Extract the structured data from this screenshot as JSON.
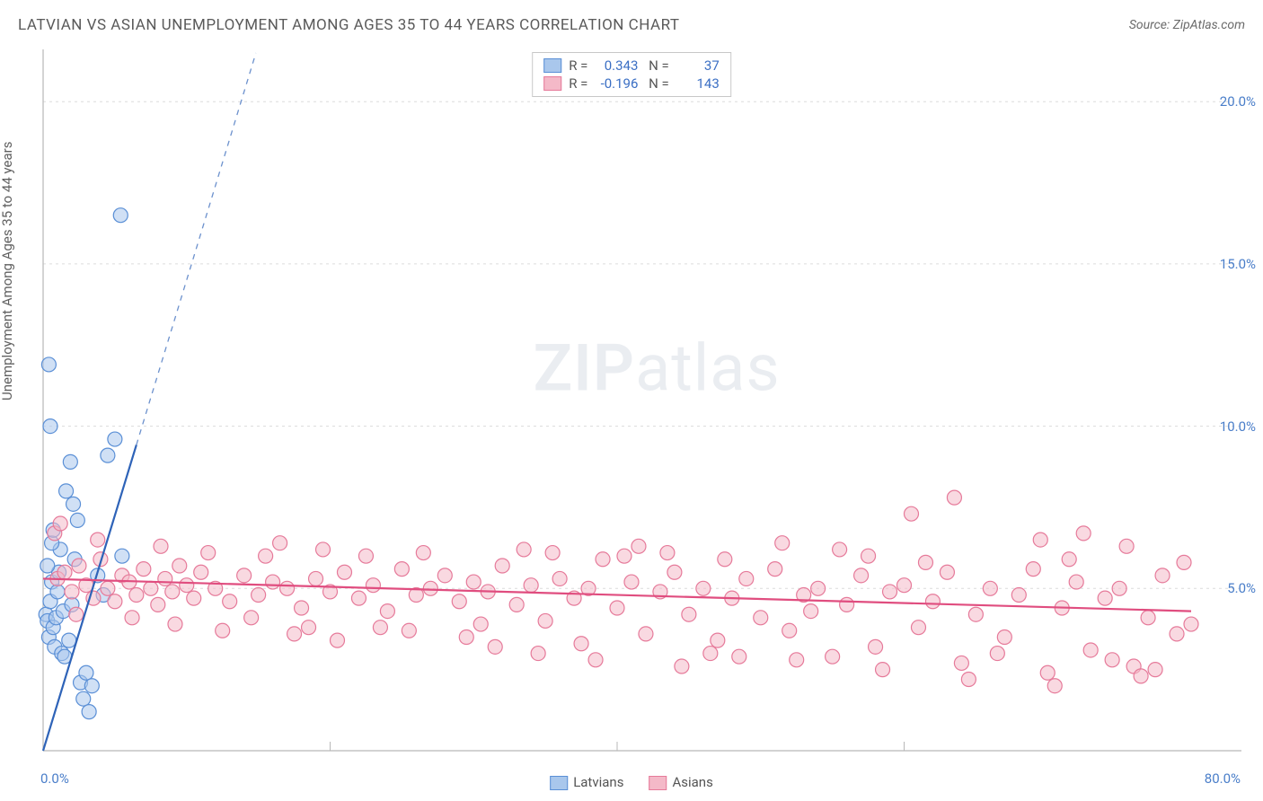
{
  "title": "LATVIAN VS ASIAN UNEMPLOYMENT AMONG AGES 35 TO 44 YEARS CORRELATION CHART",
  "source_label": "Source: ZipAtlas.com",
  "ylabel": "Unemployment Among Ages 35 to 44 years",
  "watermark": {
    "bold": "ZIP",
    "rest": "atlas"
  },
  "chart": {
    "type": "scatter",
    "background_color": "#ffffff",
    "grid_color": "#dcdcdc",
    "axis_color": "#b8b8b8",
    "x_axis": {
      "min": 0,
      "max": 80,
      "unit": "%",
      "ticks": [
        0,
        20,
        40,
        60,
        80
      ],
      "label_left": "0.0%",
      "label_right": "80.0%",
      "label_color": "#4a7ec9"
    },
    "y_axis": {
      "min": 0,
      "max": 21.5,
      "unit": "%",
      "ticks": [
        5,
        10,
        15,
        20
      ],
      "tick_labels": [
        "5.0%",
        "10.0%",
        "15.0%",
        "20.0%"
      ],
      "label_color": "#4a7ec9"
    },
    "marker_radius": 8,
    "marker_opacity": 0.55,
    "series": [
      {
        "name": "Latvians",
        "color_fill": "#a9c7ec",
        "color_stroke": "#5a8fd6",
        "trend": {
          "solid_to_x": 6.5,
          "slope": 1.45,
          "intercept": 0.0,
          "color": "#2e63b8",
          "width": 2.2
        },
        "stats": {
          "R": "0.343",
          "N": "37"
        },
        "points": [
          [
            0.2,
            4.2
          ],
          [
            0.3,
            4.0
          ],
          [
            0.4,
            3.5
          ],
          [
            0.5,
            4.6
          ],
          [
            0.6,
            5.2
          ],
          [
            0.7,
            3.8
          ],
          [
            0.8,
            3.2
          ],
          [
            0.9,
            4.1
          ],
          [
            1.0,
            4.9
          ],
          [
            1.1,
            5.5
          ],
          [
            1.2,
            6.2
          ],
          [
            1.3,
            3.0
          ],
          [
            1.4,
            4.3
          ],
          [
            1.5,
            2.9
          ],
          [
            1.8,
            3.4
          ],
          [
            2.0,
            4.5
          ],
          [
            2.2,
            5.9
          ],
          [
            2.4,
            7.1
          ],
          [
            2.6,
            2.1
          ],
          [
            2.8,
            1.6
          ],
          [
            3.0,
            2.4
          ],
          [
            3.2,
            1.2
          ],
          [
            3.4,
            2.0
          ],
          [
            1.6,
            8.0
          ],
          [
            1.9,
            8.9
          ],
          [
            2.1,
            7.6
          ],
          [
            0.5,
            10.0
          ],
          [
            0.4,
            11.9
          ],
          [
            5.4,
            16.5
          ],
          [
            4.5,
            9.1
          ],
          [
            5.0,
            9.6
          ],
          [
            5.5,
            6.0
          ],
          [
            3.8,
            5.4
          ],
          [
            4.2,
            4.8
          ],
          [
            0.6,
            6.4
          ],
          [
            0.3,
            5.7
          ],
          [
            0.7,
            6.8
          ]
        ]
      },
      {
        "name": "Asians",
        "color_fill": "#f4b9c8",
        "color_stroke": "#e67a9a",
        "trend": {
          "x0": 0,
          "y0": 5.3,
          "x1": 80,
          "y1": 4.3,
          "color": "#e04d7f",
          "width": 2.2
        },
        "stats": {
          "R": "-0.196",
          "N": "143"
        },
        "points": [
          [
            1,
            5.3
          ],
          [
            1.5,
            5.5
          ],
          [
            2,
            4.9
          ],
          [
            2.5,
            5.7
          ],
          [
            3,
            5.1
          ],
          [
            3.5,
            4.7
          ],
          [
            4,
            5.9
          ],
          [
            4.5,
            5.0
          ],
          [
            5,
            4.6
          ],
          [
            5.5,
            5.4
          ],
          [
            6,
            5.2
          ],
          [
            6.5,
            4.8
          ],
          [
            7,
            5.6
          ],
          [
            7.5,
            5.0
          ],
          [
            8,
            4.5
          ],
          [
            8.5,
            5.3
          ],
          [
            9,
            4.9
          ],
          [
            9.5,
            5.7
          ],
          [
            10,
            5.1
          ],
          [
            10.5,
            4.7
          ],
          [
            11,
            5.5
          ],
          [
            12,
            5.0
          ],
          [
            13,
            4.6
          ],
          [
            14,
            5.4
          ],
          [
            15,
            4.8
          ],
          [
            16,
            5.2
          ],
          [
            16.5,
            6.4
          ],
          [
            17,
            5.0
          ],
          [
            18,
            4.4
          ],
          [
            19,
            5.3
          ],
          [
            20,
            4.9
          ],
          [
            21,
            5.5
          ],
          [
            22,
            4.7
          ],
          [
            23,
            5.1
          ],
          [
            24,
            4.3
          ],
          [
            25,
            5.6
          ],
          [
            26,
            4.8
          ],
          [
            27,
            5.0
          ],
          [
            28,
            5.4
          ],
          [
            29,
            4.6
          ],
          [
            30,
            5.2
          ],
          [
            30.5,
            3.9
          ],
          [
            31,
            4.9
          ],
          [
            32,
            5.7
          ],
          [
            33,
            4.5
          ],
          [
            34,
            5.1
          ],
          [
            35,
            4.0
          ],
          [
            36,
            5.3
          ],
          [
            37,
            4.7
          ],
          [
            38,
            5.0
          ],
          [
            39,
            5.9
          ],
          [
            40,
            4.4
          ],
          [
            41,
            5.2
          ],
          [
            42,
            3.6
          ],
          [
            43,
            4.9
          ],
          [
            44,
            5.5
          ],
          [
            45,
            4.2
          ],
          [
            46,
            5.0
          ],
          [
            47,
            3.4
          ],
          [
            48,
            4.7
          ],
          [
            49,
            5.3
          ],
          [
            50,
            4.1
          ],
          [
            51,
            5.6
          ],
          [
            52,
            3.7
          ],
          [
            53,
            4.8
          ],
          [
            54,
            5.0
          ],
          [
            55,
            2.9
          ],
          [
            56,
            4.5
          ],
          [
            57,
            5.4
          ],
          [
            58,
            3.2
          ],
          [
            59,
            4.9
          ],
          [
            60,
            5.1
          ],
          [
            60.5,
            7.3
          ],
          [
            61,
            3.8
          ],
          [
            62,
            4.6
          ],
          [
            63,
            5.5
          ],
          [
            63.5,
            7.8
          ],
          [
            64,
            2.7
          ],
          [
            65,
            4.2
          ],
          [
            66,
            5.0
          ],
          [
            67,
            3.5
          ],
          [
            68,
            4.8
          ],
          [
            69,
            5.6
          ],
          [
            69.5,
            6.5
          ],
          [
            70,
            2.4
          ],
          [
            71,
            4.4
          ],
          [
            72,
            5.2
          ],
          [
            72.5,
            6.7
          ],
          [
            73,
            3.1
          ],
          [
            74,
            4.7
          ],
          [
            75,
            5.0
          ],
          [
            75.5,
            6.3
          ],
          [
            76,
            2.6
          ],
          [
            77,
            4.1
          ],
          [
            78,
            5.4
          ],
          [
            79,
            3.6
          ],
          [
            80,
            3.9
          ],
          [
            0.8,
            6.7
          ],
          [
            1.2,
            7.0
          ],
          [
            46.5,
            3.0
          ],
          [
            52.5,
            2.8
          ],
          [
            58.5,
            2.5
          ],
          [
            64.5,
            2.2
          ],
          [
            70.5,
            2.0
          ],
          [
            76.5,
            2.3
          ],
          [
            35.5,
            6.1
          ],
          [
            40.5,
            6.0
          ],
          [
            55.5,
            6.2
          ],
          [
            14.5,
            4.1
          ],
          [
            18.5,
            3.8
          ],
          [
            22.5,
            6.0
          ],
          [
            29.5,
            3.5
          ],
          [
            33.5,
            6.2
          ],
          [
            8.2,
            6.3
          ],
          [
            11.5,
            6.1
          ],
          [
            19.5,
            6.2
          ],
          [
            25.5,
            3.7
          ],
          [
            37.5,
            3.3
          ],
          [
            43.5,
            6.1
          ],
          [
            48.5,
            2.9
          ],
          [
            51.5,
            6.4
          ],
          [
            57.5,
            6.0
          ],
          [
            61.5,
            5.8
          ],
          [
            66.5,
            3.0
          ],
          [
            71.5,
            5.9
          ],
          [
            74.5,
            2.8
          ],
          [
            77.5,
            2.5
          ],
          [
            79.5,
            5.8
          ],
          [
            2.3,
            4.2
          ],
          [
            3.8,
            6.5
          ],
          [
            6.2,
            4.1
          ],
          [
            9.2,
            3.9
          ],
          [
            12.5,
            3.7
          ],
          [
            15.5,
            6.0
          ],
          [
            17.5,
            3.6
          ],
          [
            20.5,
            3.4
          ],
          [
            23.5,
            3.8
          ],
          [
            26.5,
            6.1
          ],
          [
            31.5,
            3.2
          ],
          [
            34.5,
            3.0
          ],
          [
            38.5,
            2.8
          ],
          [
            41.5,
            6.3
          ],
          [
            44.5,
            2.6
          ],
          [
            47.5,
            5.9
          ],
          [
            53.5,
            4.3
          ]
        ]
      }
    ]
  },
  "legend_bottom": [
    {
      "label": "Latvians",
      "fill": "#a9c7ec",
      "stroke": "#5a8fd6"
    },
    {
      "label": "Asians",
      "fill": "#f4b9c8",
      "stroke": "#e67a9a"
    }
  ]
}
